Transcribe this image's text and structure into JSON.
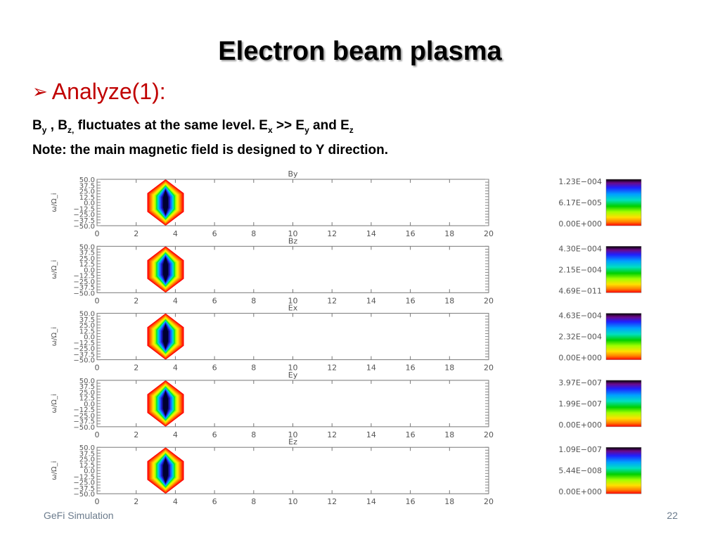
{
  "slide": {
    "title": "Electron beam plasma",
    "bullet": "Analyze(1):",
    "line1": {
      "b1": "B",
      "b1_sub": "y",
      "sep1": " , ",
      "b2": "B",
      "b2_sub": "z,",
      "mid": " fluctuates at the same level.   E",
      "ex_sub": "x",
      "gg": "  >> E",
      "ey_sub": "y",
      "and": " and E",
      "ez_sub": "z"
    },
    "line2": "Note: the main magnetic field is designed to Y direction.",
    "footer": "GeFi Simulation",
    "page_number": "22"
  },
  "chart_data": [
    {
      "type": "heatmap",
      "title": "By",
      "ylabel": "ω/Ω_i",
      "xlim": [
        0,
        20
      ],
      "ylim": [
        -50,
        50
      ],
      "x_ticks": [
        "0",
        "2",
        "4",
        "6",
        "8",
        "10",
        "12",
        "14",
        "16",
        "18",
        "20"
      ],
      "y_ticks": [
        "50.0",
        "37.5",
        "25.0",
        "12.5",
        "0.0",
        "−12.5",
        "−25.0",
        "−37.5",
        "−50.0"
      ],
      "peak": {
        "x": 3.5,
        "y": 0
      },
      "colorbar": {
        "max": "1.23E−004",
        "mid": "6.17E−005",
        "min": "0.00E+000"
      }
    },
    {
      "type": "heatmap",
      "title": "Bz",
      "ylabel": "ω/Ω_i",
      "xlim": [
        0,
        20
      ],
      "ylim": [
        -50,
        50
      ],
      "x_ticks": [
        "0",
        "2",
        "4",
        "6",
        "8",
        "10",
        "12",
        "14",
        "16",
        "18",
        "20"
      ],
      "y_ticks": [
        "50.0",
        "37.5",
        "25.0",
        "12.5",
        "0.0",
        "−12.5",
        "−25.0",
        "−37.5",
        "−50.0"
      ],
      "peak": {
        "x": 3.5,
        "y": 0
      },
      "colorbar": {
        "max": "4.30E−004",
        "mid": "2.15E−004",
        "min": "4.69E−011"
      }
    },
    {
      "type": "heatmap",
      "title": "Ex",
      "ylabel": "ω/Ω_i",
      "xlim": [
        0,
        20
      ],
      "ylim": [
        -50,
        50
      ],
      "x_ticks": [
        "0",
        "2",
        "4",
        "6",
        "8",
        "10",
        "12",
        "14",
        "16",
        "18",
        "20"
      ],
      "y_ticks": [
        "50.0",
        "37.5",
        "25.0",
        "12.5",
        "0.0",
        "−12.5",
        "−25.0",
        "−37.5",
        "−50.0"
      ],
      "peak": {
        "x": 3.5,
        "y": 0
      },
      "colorbar": {
        "max": "4.63E−004",
        "mid": "2.32E−004",
        "min": "0.00E+000"
      }
    },
    {
      "type": "heatmap",
      "title": "Ey",
      "ylabel": "ω/Ω_i",
      "xlim": [
        0,
        20
      ],
      "ylim": [
        -50,
        50
      ],
      "x_ticks": [
        "0",
        "2",
        "4",
        "6",
        "8",
        "10",
        "12",
        "14",
        "16",
        "18",
        "20"
      ],
      "y_ticks": [
        "50.0",
        "37.5",
        "25.0",
        "12.5",
        "0.0",
        "−12.5",
        "−25.0",
        "−37.5",
        "−50.0"
      ],
      "peak": {
        "x": 3.5,
        "y": 0
      },
      "colorbar": {
        "max": "3.97E−007",
        "mid": "1.99E−007",
        "min": "0.00E+000"
      }
    },
    {
      "type": "heatmap",
      "title": "Ez",
      "ylabel": "ω/Ω_i",
      "xlim": [
        0,
        20
      ],
      "ylim": [
        -50,
        50
      ],
      "x_ticks": [
        "0",
        "2",
        "4",
        "6",
        "8",
        "10",
        "12",
        "14",
        "16",
        "18",
        "20"
      ],
      "y_ticks": [
        "50.0",
        "37.5",
        "25.0",
        "12.5",
        "0.0",
        "−12.5",
        "−25.0",
        "−37.5",
        "−50.0"
      ],
      "peak": {
        "x": 3.5,
        "y": 0
      },
      "colorbar": {
        "max": "1.09E−007",
        "mid": "5.44E−008",
        "min": "0.00E+000"
      }
    }
  ]
}
